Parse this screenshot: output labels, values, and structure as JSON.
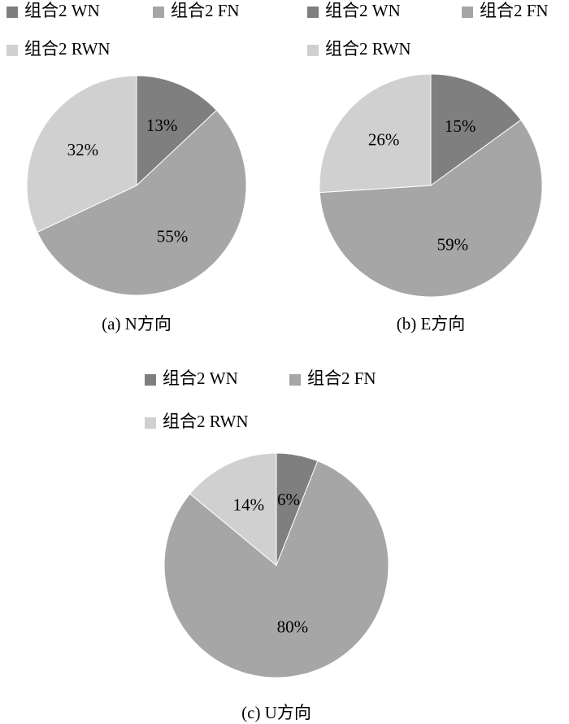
{
  "chart_data": [
    {
      "type": "pie",
      "caption": "(a) N方向",
      "categories": [
        "组合2 WN",
        "组合2 FN",
        "组合2 RWN"
      ],
      "values": [
        13,
        55,
        32
      ],
      "value_labels": [
        "13%",
        "55%",
        "32%"
      ],
      "colors": [
        "#7f7f7f",
        "#a6a6a6",
        "#d0d0d0"
      ]
    },
    {
      "type": "pie",
      "caption": "(b) E方向",
      "categories": [
        "组合2 WN",
        "组合2 FN",
        "组合2 RWN"
      ],
      "values": [
        15,
        59,
        26
      ],
      "value_labels": [
        "15%",
        "59%",
        "26%"
      ],
      "colors": [
        "#7f7f7f",
        "#a6a6a6",
        "#d0d0d0"
      ]
    },
    {
      "type": "pie",
      "caption": "(c) U方向",
      "categories": [
        "组合2 WN",
        "组合2 FN",
        "组合2 RWN"
      ],
      "values": [
        6,
        80,
        14
      ],
      "value_labels": [
        "6%",
        "80%",
        "14%"
      ],
      "colors": [
        "#7f7f7f",
        "#a6a6a6",
        "#d0d0d0"
      ]
    }
  ]
}
